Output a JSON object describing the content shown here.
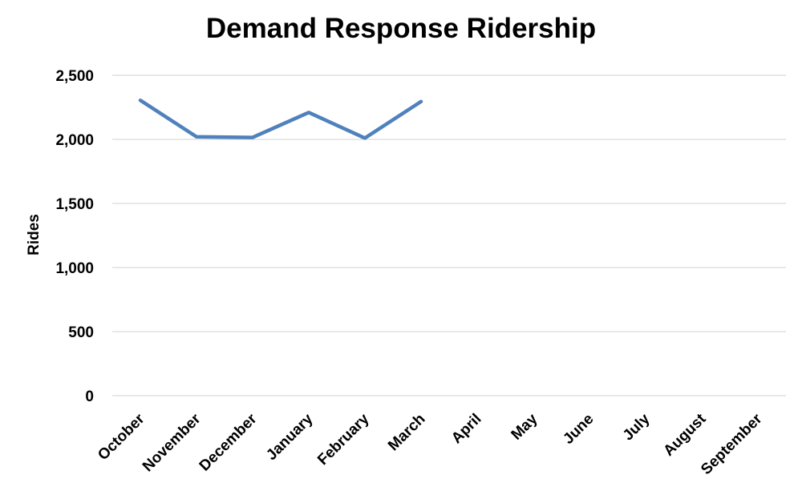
{
  "chart_data": {
    "type": "line",
    "title": "Demand Response Ridership",
    "xlabel": "",
    "ylabel": "Rides",
    "categories": [
      "October",
      "November",
      "December",
      "January",
      "February",
      "March",
      "April",
      "May",
      "June",
      "July",
      "August",
      "September"
    ],
    "series": [
      {
        "values": [
          2305,
          2020,
          2015,
          2210,
          2010,
          2295,
          null,
          null,
          null,
          null,
          null,
          null
        ],
        "color": "#4F81BD"
      }
    ],
    "ylim": [
      0,
      2500
    ],
    "yticks": [
      0,
      500,
      1000,
      1500,
      2000,
      2500
    ],
    "ytick_labels": [
      "0",
      "500",
      "1,000",
      "1,500",
      "2,000",
      "2,500"
    ],
    "grid": true,
    "legend": "none"
  },
  "colors": {
    "gridline": "#D9D9D9",
    "text": "#000000"
  }
}
